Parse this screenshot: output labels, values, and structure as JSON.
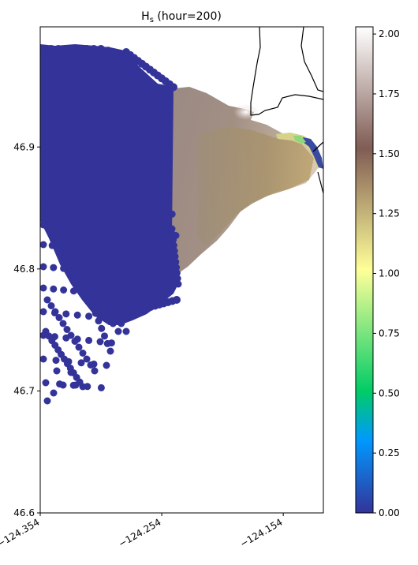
{
  "chart_data": {
    "type": "heatmap",
    "title_main": "H",
    "title_sub": "s",
    "title_rest": " (hour=200)",
    "variable": "Hs",
    "hour": 200,
    "xlim": [
      -124.354,
      -124.121
    ],
    "ylim": [
      46.6,
      46.9985
    ],
    "x_ticks": [
      {
        "value": -124.354,
        "label": "−124.354"
      },
      {
        "value": -124.254,
        "label": "−124.254"
      },
      {
        "value": -124.154,
        "label": "−124.154"
      }
    ],
    "y_ticks": [
      {
        "value": 46.9,
        "label": "46.9"
      },
      {
        "value": 46.8,
        "label": "46.8"
      },
      {
        "value": 46.7,
        "label": "46.7"
      },
      {
        "value": 46.6,
        "label": "46.6"
      }
    ],
    "colorbar": {
      "min": 0.0,
      "max": 2.03,
      "ticks": [
        {
          "value": 0.0,
          "label": "0.00"
        },
        {
          "value": 0.25,
          "label": "0.25"
        },
        {
          "value": 0.5,
          "label": "0.50"
        },
        {
          "value": 0.75,
          "label": "0.75"
        },
        {
          "value": 1.0,
          "label": "1.00"
        },
        {
          "value": 1.25,
          "label": "1.25"
        },
        {
          "value": 1.5,
          "label": "1.50"
        },
        {
          "value": 1.75,
          "label": "1.75"
        },
        {
          "value": 2.0,
          "label": "2.00"
        }
      ],
      "colormap": "terrain",
      "colormap_stops": [
        {
          "v": 0.0,
          "color": "#333399"
        },
        {
          "v": 0.15,
          "color": "#0099ff"
        },
        {
          "v": 0.25,
          "color": "#00cc66"
        },
        {
          "v": 0.5,
          "color": "#ffff99"
        },
        {
          "v": 0.75,
          "color": "#805c54"
        },
        {
          "v": 1.0,
          "color": "#ffffff"
        }
      ]
    },
    "fields": {
      "offshore_zero_region_value": 0.0,
      "bay_plume_value": 1.65,
      "inner_bay_value": 1.38,
      "nearshore_max_value": 1.95
    },
    "colors": {
      "zero": "#333399",
      "plume": "#a08a80",
      "inner": "#a8916a",
      "highlight": "#e8dcd8",
      "coast": "#000000"
    }
  }
}
